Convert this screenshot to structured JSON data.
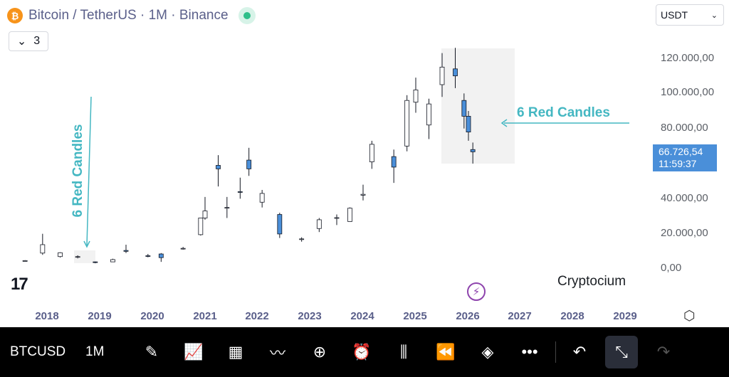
{
  "header": {
    "coin_glyph": "₿",
    "title": "Bitcoin / TetherUS · 1M · Binance",
    "collapse_count": "3",
    "currency": "USDT"
  },
  "price_axis": [
    "120.000,00",
    "100.000,00",
    "80.000,00",
    "40.000,00",
    "20.000,00",
    "0,00"
  ],
  "price_tag": {
    "price": "66.726,54",
    "countdown": "11:59:37"
  },
  "time_axis": [
    "2018",
    "2019",
    "2020",
    "2021",
    "2022",
    "2023",
    "2024",
    "2025",
    "2026",
    "2027",
    "2028",
    "2029"
  ],
  "annotations": {
    "right": "6 Red Candles",
    "left": "6 Red Candles"
  },
  "watermark": "Cryptocium",
  "colors": {
    "up": "#ffffff",
    "down": "#4a8fd9",
    "wick": "#131722",
    "annotation": "#44b7c2",
    "highlight": "#f2f2f2"
  },
  "toolbar": {
    "symbol": "BTCUSD",
    "interval": "1M",
    "icons": [
      "pen-icon",
      "indicators-icon",
      "templates-icon",
      "compare-icon",
      "add-icon",
      "alert-icon",
      "replay-candles-icon",
      "rewind-icon",
      "layers-icon",
      "more-icon",
      "undo-icon",
      "compress-icon",
      "redo-icon"
    ]
  },
  "chart_data": {
    "type": "candlestick",
    "title": "Bitcoin / TetherUS · 1M · Binance",
    "xlabel": "",
    "ylabel": "",
    "ylim": [
      0,
      125000
    ],
    "x": [
      "2017-08",
      "2017-12",
      "2018-04",
      "2018-08",
      "2018-12",
      "2019-04",
      "2019-07",
      "2019-12",
      "2020-03",
      "2020-08",
      "2020-12",
      "2021-01",
      "2021-04",
      "2021-06",
      "2021-09",
      "2021-11",
      "2022-02",
      "2022-06",
      "2022-11",
      "2023-03",
      "2023-07",
      "2023-10",
      "2024-01",
      "2024-03",
      "2024-08",
      "2024-11",
      "2025-01",
      "2025-04",
      "2025-07",
      "2025-10",
      "2025-12",
      "2026-01",
      "2026-02"
    ],
    "open": [
      4500,
      9000,
      7000,
      7000,
      4000,
      4000,
      10500,
      7500,
      8500,
      11600,
      19500,
      29000,
      59000,
      35000,
      44000,
      62000,
      38000,
      31000,
      17000,
      23000,
      29000,
      27000,
      42000,
      61000,
      64000,
      70000,
      95000,
      82000,
      105000,
      114000,
      96000,
      87000,
      68000
    ],
    "high": [
      5000,
      20000,
      9500,
      7700,
      4200,
      5800,
      13800,
      8500,
      9000,
      12500,
      29000,
      41000,
      64800,
      41000,
      52000,
      69000,
      45000,
      32000,
      18000,
      29000,
      31000,
      35000,
      48000,
      73000,
      68000,
      99000,
      109000,
      97000,
      123000,
      126000,
      100000,
      90000,
      72000
    ],
    "low": [
      4300,
      8000,
      6500,
      6000,
      3200,
      3900,
      9000,
      6600,
      4000,
      11000,
      19000,
      28000,
      47000,
      29000,
      40000,
      53000,
      35000,
      17600,
      15500,
      21000,
      25000,
      27000,
      39000,
      57000,
      49000,
      67000,
      89000,
      74000,
      98000,
      103000,
      80000,
      73000,
      60000
    ],
    "close": [
      4700,
      13800,
      9200,
      7000,
      3700,
      5300,
      10000,
      7200,
      6400,
      11700,
      29000,
      33000,
      57000,
      35000,
      43800,
      57000,
      43000,
      19900,
      17100,
      28000,
      29200,
      34600,
      42500,
      71000,
      58000,
      96000,
      102000,
      94000,
      115000,
      110000,
      87000,
      78000,
      66726
    ]
  }
}
